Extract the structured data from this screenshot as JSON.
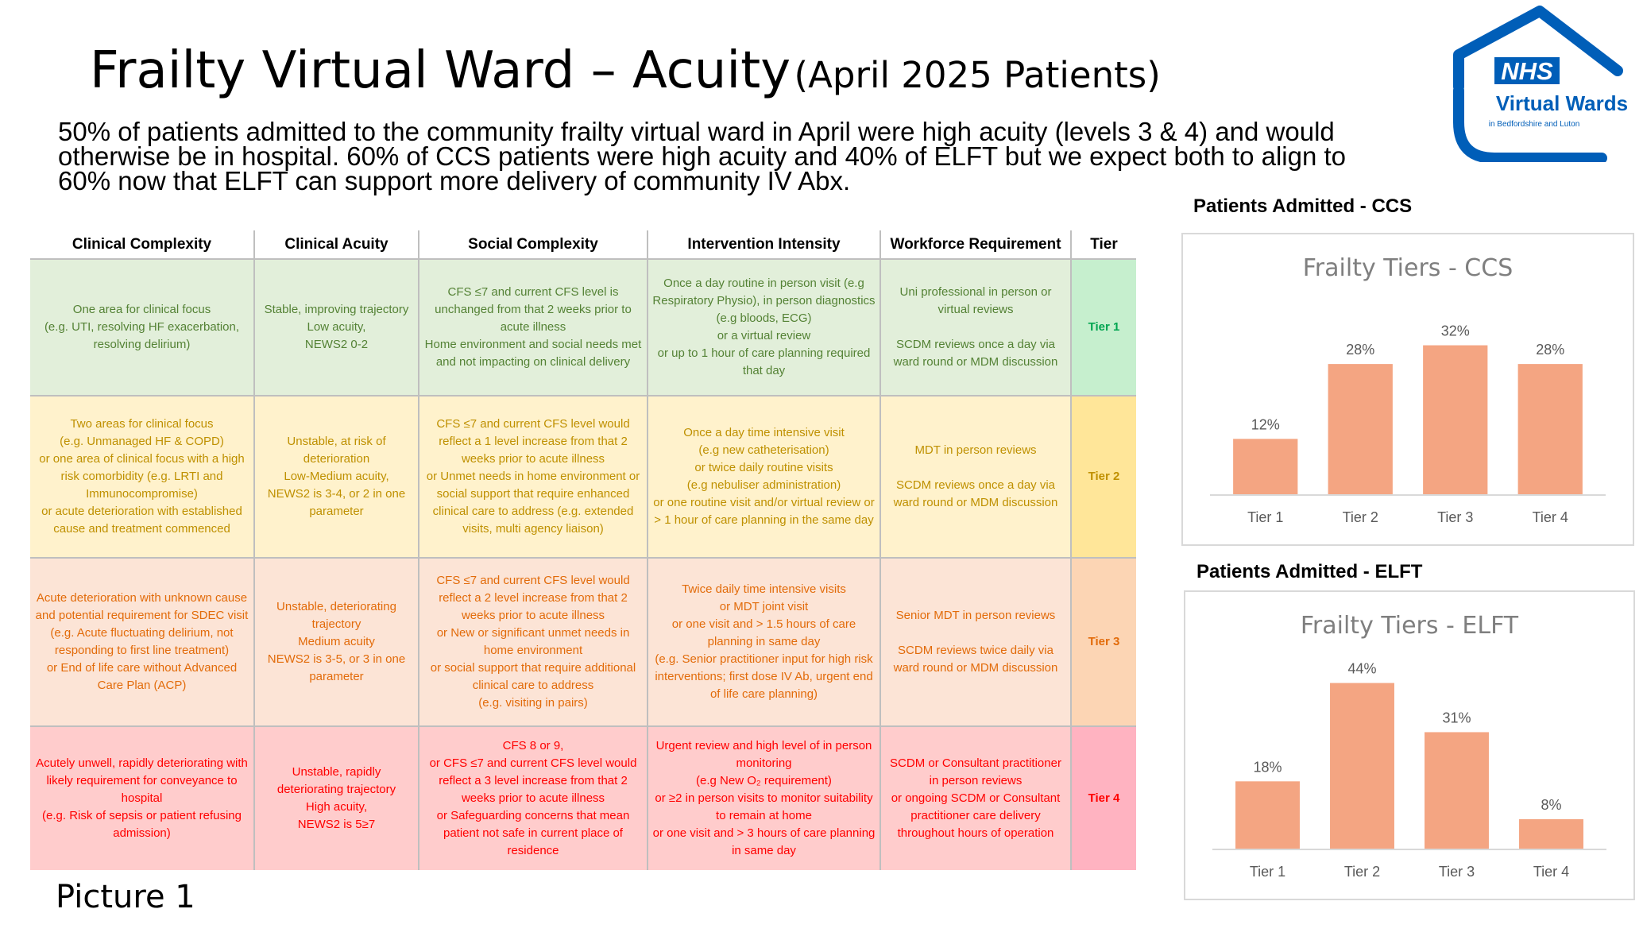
{
  "title": {
    "main": "Frailty Virtual Ward – Acuity",
    "sub": "(April 2025 Patients)"
  },
  "intro": "50% of patients admitted to the community frailty virtual ward in April were high acuity (levels 3 & 4) and would otherwise be in hospital. 60% of CCS patients were high acuity and 40% of ELFT but we expect both to align to 60% now that ELFT can support more delivery of community IV Abx.",
  "logo": {
    "nhs": "NHS",
    "name": "Virtual Wards",
    "tagline": "in Bedfordshire and Luton",
    "color": "#005EB8"
  },
  "table": {
    "headers": [
      "Clinical Complexity",
      "Clinical Acuity",
      "Social Complexity",
      "Intervention Intensity",
      "Workforce Requirement",
      "Tier"
    ],
    "rows": [
      {
        "cells": [
          "One area for clinical focus\n(e.g. UTI, resolving HF exacerbation, resolving delirium)",
          "Stable, improving trajectory\nLow acuity,\nNEWS2 0-2",
          "CFS ≤7 and current CFS level is unchanged from that 2 weeks prior to acute illness\nHome environment and social needs met and not impacting on clinical delivery",
          "Once a day routine in person visit (e.g Respiratory Physio), in person diagnostics (e.g bloods, ECG)\nor a virtual review\nor up to 1 hour of care planning required that day",
          "Uni professional in person or virtual reviews\n\nSCDM reviews once a day via ward round or MDM discussion",
          "Tier 1"
        ]
      },
      {
        "cells": [
          "Two areas for clinical focus\n(e.g. Unmanaged HF & COPD)\nor one area of clinical focus with a high risk comorbidity (e.g. LRTI and Immunocompromise)\nor acute deterioration with established cause and treatment commenced",
          "Unstable, at risk of deterioration\nLow-Medium acuity,\nNEWS2 is 3-4, or 2 in one parameter",
          "CFS ≤7 and current CFS level would reflect a 1 level increase from that 2 weeks prior to acute illness\nor Unmet needs in home environment or social support that require enhanced clinical care to address (e.g. extended visits, multi agency liaison)",
          "Once a day time intensive visit\n(e.g new catheterisation)\nor twice daily routine visits\n(e.g nebuliser administration)\nor one routine visit and/or virtual review or > 1 hour of care planning in the same day",
          "MDT in person reviews\n\nSCDM reviews once a day via ward round or MDM discussion",
          "Tier 2"
        ]
      },
      {
        "cells": [
          "Acute deterioration with unknown cause and potential requirement for SDEC visit\n(e.g. Acute fluctuating delirium, not responding to first line treatment)\nor End of life care without Advanced Care Plan (ACP)",
          "Unstable, deteriorating trajectory\nMedium acuity\nNEWS2 is 3-5, or 3 in one parameter",
          "CFS ≤7 and current CFS level would reflect a 2 level increase from that 2 weeks prior to acute illness\nor New or significant unmet needs in home environment\nor social support that require additional clinical care to address\n(e.g. visiting in pairs)",
          "Twice daily time intensive visits\nor MDT joint visit\nor one visit and > 1.5 hours of care planning in same day\n(e.g. Senior practitioner input for high risk interventions; first dose IV Ab, urgent end of life care planning)",
          "Senior MDT in person reviews\n\nSCDM reviews twice daily via ward round or MDM discussion",
          "Tier 3"
        ]
      },
      {
        "cells": [
          "Acutely unwell, rapidly deteriorating with likely requirement for conveyance to hospital\n(e.g. Risk of sepsis or patient refusing admission)",
          "Unstable, rapidly deteriorating trajectory\nHigh acuity,\nNEWS2 is 5≥7",
          "CFS 8 or 9,\nor CFS ≤7 and current CFS level would reflect a 3 level increase from that 2 weeks prior to acute illness\nor Safeguarding concerns that mean patient not safe in current place of residence",
          "Urgent review and high level of in person monitoring\n(e.g New O₂ requirement)\nor ≥2 in person visits to monitor suitability to remain at home\nor one visit and > 3 hours of care planning in same day",
          "SCDM or Consultant practitioner in person reviews\nor ongoing SCDM or Consultant practitioner care delivery throughout hours of operation",
          "Tier 4"
        ]
      }
    ]
  },
  "charts": {
    "ccs_heading": "Patients Admitted - CCS",
    "elft_heading": "Patients Admitted - ELFT"
  },
  "chart_data": [
    {
      "type": "bar",
      "title": "Frailty Tiers - CCS",
      "categories": [
        "Tier 1",
        "Tier 2",
        "Tier 3",
        "Tier 4"
      ],
      "values": [
        12,
        28,
        32,
        28
      ],
      "value_labels": [
        "12%",
        "28%",
        "32%",
        "28%"
      ],
      "ylim": [
        0,
        36
      ],
      "bar_color": "#f4a582",
      "grid": false,
      "legend": "none"
    },
    {
      "type": "bar",
      "title": "Frailty Tiers - ELFT",
      "categories": [
        "Tier 1",
        "Tier 2",
        "Tier 3",
        "Tier 4"
      ],
      "values": [
        18,
        44,
        31,
        8
      ],
      "value_labels": [
        "18%",
        "44%",
        "31%",
        "8%"
      ],
      "ylim": [
        0,
        50
      ],
      "bar_color": "#f4a582",
      "grid": false,
      "legend": "none"
    }
  ],
  "picture_caption": "Picture 1"
}
